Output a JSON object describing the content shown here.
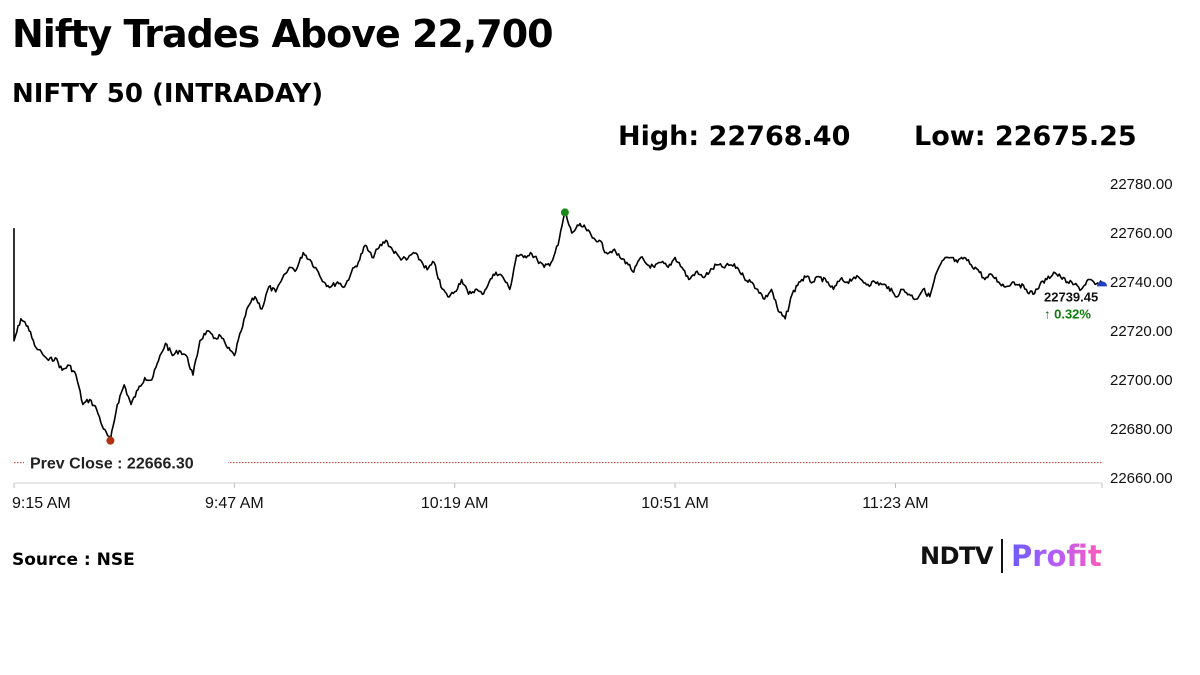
{
  "title": "Nifty Trades Above 22,700",
  "subtitle": "NIFTY 50 (INTRADAY)",
  "stats": {
    "high": "High: 22768.40",
    "low": "Low: 22675.25"
  },
  "source": "Source : NSE",
  "logo": {
    "brand": "NDTV",
    "product": "Profit"
  },
  "colors": {
    "line": "#000000",
    "prev_close_line": "#c0392b",
    "high_marker": "#1a8a1a",
    "low_marker": "#b03010",
    "last_marker": "#1f3fbf",
    "positive": "#0a7d0a"
  },
  "chart_data": {
    "type": "line",
    "x_axis": {
      "start": "9:15 AM",
      "end": "11:53 AM",
      "tick_labels": [
        "9:15 AM",
        "9:47 AM",
        "10:19 AM",
        "10:51 AM",
        "11:23 AM"
      ],
      "tick_minutes": [
        0,
        32,
        64,
        96,
        128
      ]
    },
    "y_axis": {
      "ylim": [
        22660,
        22780
      ],
      "tick_values": [
        22780,
        22760,
        22740,
        22720,
        22700,
        22680,
        22660
      ],
      "tick_labels": [
        "22780.00",
        "22760.00",
        "22740.00",
        "22720.00",
        "22700.00",
        "22680.00",
        "22660.00"
      ],
      "position": "right"
    },
    "series": [
      {
        "points": [
          [
            "9:15 AM",
            22762
          ],
          [
            "9:15 AM",
            22716
          ],
          [
            "9:16 AM",
            22725
          ],
          [
            "9:17 AM",
            22722
          ],
          [
            "9:18 AM",
            22714
          ],
          [
            "9:20 AM",
            22708
          ],
          [
            "9:21 AM",
            22709
          ],
          [
            "9:22 AM",
            22704
          ],
          [
            "9:23 AM",
            22706
          ],
          [
            "9:24 AM",
            22702
          ],
          [
            "9:25 AM",
            22690
          ],
          [
            "9:26 AM",
            22692
          ],
          [
            "9:27 AM",
            22688
          ],
          [
            "9:28 AM",
            22680
          ],
          [
            "9:29 AM",
            22675.25
          ],
          [
            "9:30 AM",
            22690
          ],
          [
            "9:31 AM",
            22698
          ],
          [
            "9:32 AM",
            22690
          ],
          [
            "9:33 AM",
            22696
          ],
          [
            "9:34 AM",
            22701
          ],
          [
            "9:35 AM",
            22700
          ],
          [
            "9:36 AM",
            22708
          ],
          [
            "9:37 AM",
            22715
          ],
          [
            "9:38 AM",
            22710
          ],
          [
            "9:39 AM",
            22712
          ],
          [
            "9:40 AM",
            22710
          ],
          [
            "9:41 AM",
            22702
          ],
          [
            "9:42 AM",
            22716
          ],
          [
            "9:43 AM",
            22720
          ],
          [
            "9:44 AM",
            22717
          ],
          [
            "9:45 AM",
            22718
          ],
          [
            "9:46 AM",
            22713
          ],
          [
            "9:47 AM",
            22710
          ],
          [
            "9:48 AM",
            22720
          ],
          [
            "9:49 AM",
            22730
          ],
          [
            "9:50 AM",
            22734
          ],
          [
            "9:51 AM",
            22729
          ],
          [
            "9:52 AM",
            22738
          ],
          [
            "9:53 AM",
            22736
          ],
          [
            "9:55 AM",
            22746
          ],
          [
            "9:56 AM",
            22745
          ],
          [
            "9:57 AM",
            22752
          ],
          [
            "9:58 AM",
            22749
          ],
          [
            "9:59 AM",
            22745
          ],
          [
            "10:00 AM",
            22740
          ],
          [
            "10:01 AM",
            22738
          ],
          [
            "10:02 AM",
            22740
          ],
          [
            "10:03 AM",
            22738
          ],
          [
            "10:04 AM",
            22744
          ],
          [
            "10:05 AM",
            22748
          ],
          [
            "10:06 AM",
            22755
          ],
          [
            "10:07 AM",
            22750
          ],
          [
            "10:08 AM",
            22754
          ],
          [
            "10:09 AM",
            22757
          ],
          [
            "10:10 AM",
            22753
          ],
          [
            "10:11 AM",
            22750
          ],
          [
            "10:12 AM",
            22749
          ],
          [
            "10:13 AM",
            22752
          ],
          [
            "10:14 AM",
            22749
          ],
          [
            "10:15 AM",
            22745
          ],
          [
            "10:16 AM",
            22748
          ],
          [
            "10:17 AM",
            22738
          ],
          [
            "10:18 AM",
            22734
          ],
          [
            "10:19 AM",
            22736
          ],
          [
            "10:20 AM",
            22741
          ],
          [
            "10:21 AM",
            22735
          ],
          [
            "10:22 AM",
            22737
          ],
          [
            "10:23 AM",
            22735
          ],
          [
            "10:24 AM",
            22740
          ],
          [
            "10:25 AM",
            22744
          ],
          [
            "10:26 AM",
            22742
          ],
          [
            "10:27 AM",
            22737
          ],
          [
            "10:28 AM",
            22751
          ],
          [
            "10:29 AM",
            22750
          ],
          [
            "10:30 AM",
            22752
          ],
          [
            "10:31 AM",
            22749
          ],
          [
            "10:32 AM",
            22746
          ],
          [
            "10:33 AM",
            22748
          ],
          [
            "10:34 AM",
            22755
          ],
          [
            "10:35 AM",
            22768.4
          ],
          [
            "10:36 AM",
            22760
          ],
          [
            "10:37 AM",
            22763
          ],
          [
            "10:38 AM",
            22762
          ],
          [
            "10:39 AM",
            22758
          ],
          [
            "10:40 AM",
            22757
          ],
          [
            "10:41 AM",
            22752
          ],
          [
            "10:42 AM",
            22753
          ],
          [
            "10:43 AM",
            22750
          ],
          [
            "10:44 AM",
            22748
          ],
          [
            "10:45 AM",
            22744
          ],
          [
            "10:46 AM",
            22750
          ],
          [
            "10:47 AM",
            22747
          ],
          [
            "10:48 AM",
            22746
          ],
          [
            "10:49 AM",
            22748
          ],
          [
            "10:50 AM",
            22746
          ],
          [
            "10:51 AM",
            22750
          ],
          [
            "10:52 AM",
            22746
          ],
          [
            "10:53 AM",
            22741
          ],
          [
            "10:54 AM",
            22744
          ],
          [
            "10:55 AM",
            22742
          ],
          [
            "10:56 AM",
            22744
          ],
          [
            "10:57 AM",
            22747
          ],
          [
            "10:58 AM",
            22746
          ],
          [
            "10:59 AM",
            22747
          ],
          [
            "11:00 AM",
            22746
          ],
          [
            "11:01 AM",
            22742
          ],
          [
            "11:02 AM",
            22740
          ],
          [
            "11:03 AM",
            22737
          ],
          [
            "11:04 AM",
            22733
          ],
          [
            "11:05 AM",
            22737
          ],
          [
            "11:06 AM",
            22728
          ],
          [
            "11:07 AM",
            22725
          ],
          [
            "11:08 AM",
            22735
          ],
          [
            "11:09 AM",
            22740
          ],
          [
            "11:10 AM",
            22742
          ],
          [
            "11:11 AM",
            22740
          ],
          [
            "11:12 AM",
            22742
          ],
          [
            "11:13 AM",
            22740
          ],
          [
            "11:14 AM",
            22737
          ],
          [
            "11:15 AM",
            22741
          ],
          [
            "11:16 AM",
            22740
          ],
          [
            "11:17 AM",
            22742
          ],
          [
            "11:18 AM",
            22741
          ],
          [
            "11:19 AM",
            22739
          ],
          [
            "11:20 AM",
            22740
          ],
          [
            "11:21 AM",
            22739
          ],
          [
            "11:22 AM",
            22738
          ],
          [
            "11:23 AM",
            22734
          ],
          [
            "11:24 AM",
            22737
          ],
          [
            "11:25 AM",
            22735
          ],
          [
            "11:26 AM",
            22733
          ],
          [
            "11:27 AM",
            22737
          ],
          [
            "11:28 AM",
            22734
          ],
          [
            "11:29 AM",
            22744
          ],
          [
            "11:30 AM",
            22749
          ],
          [
            "11:31 AM",
            22750
          ],
          [
            "11:32 AM",
            22748
          ],
          [
            "11:33 AM",
            22750
          ],
          [
            "11:34 AM",
            22747
          ],
          [
            "11:35 AM",
            22745
          ],
          [
            "11:36 AM",
            22741
          ],
          [
            "11:37 AM",
            22743
          ],
          [
            "11:38 AM",
            22740
          ],
          [
            "11:39 AM",
            22738
          ],
          [
            "11:40 AM",
            22740
          ],
          [
            "11:41 AM",
            22739
          ],
          [
            "11:42 AM",
            22737
          ],
          [
            "11:43 AM",
            22735
          ],
          [
            "11:44 AM",
            22739
          ],
          [
            "11:45 AM",
            22741
          ],
          [
            "11:46 AM",
            22744
          ],
          [
            "11:47 AM",
            22742
          ],
          [
            "11:48 AM",
            22740
          ],
          [
            "11:49 AM",
            22739
          ],
          [
            "11:50 AM",
            22737
          ],
          [
            "11:51 AM",
            22741
          ],
          [
            "11:52 AM",
            22739
          ],
          [
            "11:53 AM",
            22739.45
          ]
        ]
      }
    ],
    "high": {
      "time": "10:35 AM",
      "value": 22768.4
    },
    "low": {
      "time": "9:29 AM",
      "value": 22675.25
    },
    "last": {
      "time": "11:53 AM",
      "value": 22739.45,
      "label": "22739.45",
      "change_label": "↑ 0.32%"
    },
    "reference_line": {
      "value": 22666.3,
      "label": "Prev Close : 22666.30",
      "style": "dotted"
    },
    "grid": false,
    "legend": "none"
  }
}
